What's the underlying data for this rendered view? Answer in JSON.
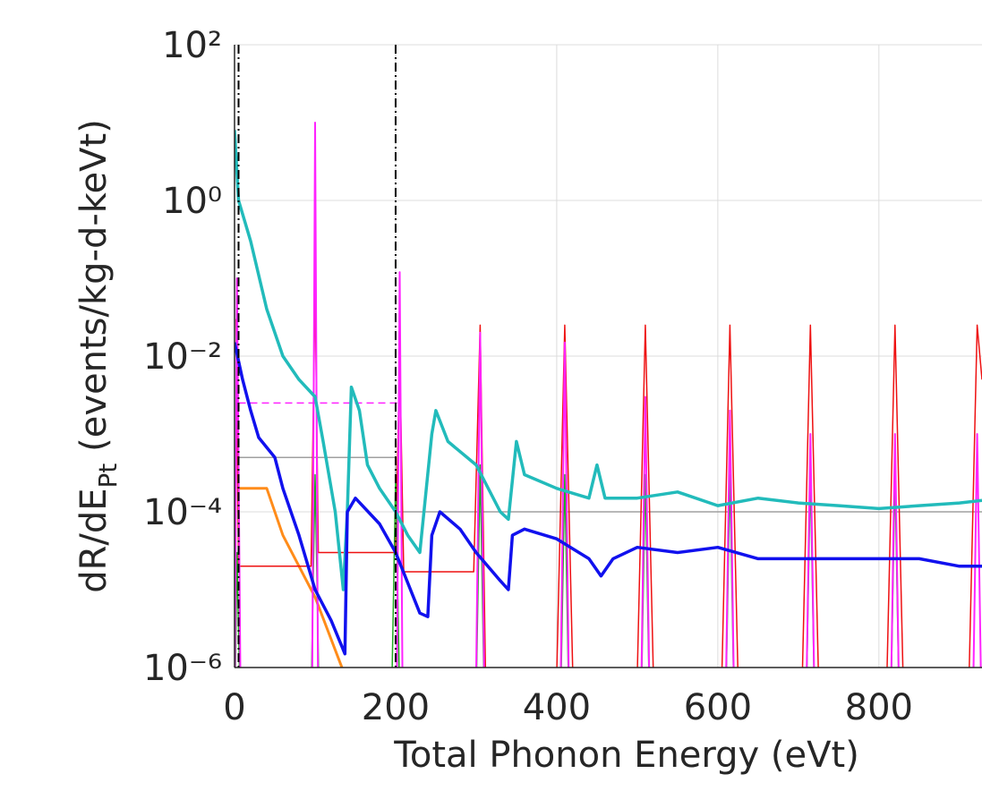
{
  "chart_data": {
    "type": "line",
    "xlabel": "Total Phonon Energy (eVt)",
    "ylabel": [
      "dR/dE",
      "Pt",
      "  (events/kg-d-keVt)"
    ],
    "xlim": [
      0,
      928
    ],
    "xticks": [
      0,
      200,
      400,
      600,
      800
    ],
    "ylim": [
      1e-06,
      100
    ],
    "yticks": [
      {
        "value": 100,
        "label": "10²"
      },
      {
        "value": 1,
        "label": "10⁰"
      },
      {
        "value": 0.01,
        "label": "10⁻²"
      },
      {
        "value": 0.0001,
        "label": "10⁻⁴"
      },
      {
        "value": 1e-06,
        "label": "10⁻⁶"
      }
    ],
    "yscale": "log",
    "grid": true,
    "vlines": [
      5,
      200
    ],
    "series": [
      {
        "color": "#a0a0a0",
        "width": 1.5,
        "dash": "none",
        "x": [
          5,
          200,
          200,
          928
        ],
        "values": [
          0.0005,
          0.0005,
          0.0001,
          0.0001
        ]
      },
      {
        "color": "#ff8c1a",
        "width": 3,
        "dash": "none",
        "x": [
          5,
          40,
          60,
          100,
          135
        ],
        "values": [
          0.0002,
          0.0002,
          5e-05,
          8e-06,
          9e-07
        ]
      },
      {
        "color": "#ee1111",
        "width": 1.5,
        "dash": "none",
        "x": [
          2,
          5,
          10,
          95,
          100,
          104,
          110,
          200,
          205,
          210,
          297,
          305,
          313,
          398,
          410,
          422,
          498,
          510,
          522,
          603,
          615,
          627,
          703,
          715,
          727,
          808,
          820,
          832,
          910,
          922,
          928
        ],
        "values": [
          0.03,
          2e-05,
          2e-05,
          2e-05,
          0.08,
          3e-05,
          3e-05,
          3e-05,
          0.01,
          1.7e-05,
          1.7e-05,
          0.025,
          1e-07,
          1e-07,
          0.025,
          1e-07,
          1e-07,
          0.025,
          1e-07,
          1e-07,
          0.025,
          1e-07,
          1e-07,
          0.025,
          1e-07,
          1e-07,
          0.025,
          1e-07,
          1e-07,
          0.025,
          0.005
        ]
      },
      {
        "color": "#22aa22",
        "width": 1.5,
        "dash": "none",
        "x": [
          0,
          3,
          8,
          94,
          100,
          106,
          194,
          200,
          206,
          299,
          305,
          311,
          404,
          410,
          416,
          504,
          510,
          516,
          609,
          615,
          621,
          709,
          715,
          721,
          814,
          820,
          826
        ],
        "values": [
          1e-07,
          3e-05,
          1e-07,
          1e-07,
          0.0003,
          1e-07,
          1e-07,
          0.0003,
          1e-07,
          1e-07,
          0.0004,
          1e-07,
          1e-07,
          0.0003,
          1e-07,
          1e-07,
          0.0003,
          1e-07,
          1e-07,
          0.0003,
          1e-07,
          1e-07,
          0.0003,
          1e-07,
          1e-07,
          0.0003,
          1e-07
        ]
      },
      {
        "color": "#ff22ff",
        "width": 1.5,
        "dash": "8 5",
        "x": [
          5,
          205
        ],
        "values": [
          0.0025,
          0.0025
        ]
      },
      {
        "color": "#ff22ff",
        "width": 2,
        "dash": "none",
        "x": [
          0,
          3,
          8,
          96,
          100,
          104,
          201,
          205,
          209,
          299,
          305,
          311,
          404,
          410,
          416,
          504,
          510,
          516,
          609,
          615,
          621,
          709,
          715,
          721,
          814,
          820,
          826,
          916,
          922,
          928
        ],
        "values": [
          1e-07,
          0.1,
          1e-07,
          1e-07,
          10,
          1e-07,
          1e-07,
          0.12,
          1e-07,
          1e-07,
          0.02,
          1e-07,
          1e-07,
          0.015,
          1e-07,
          1e-07,
          0.003,
          1e-07,
          1e-07,
          0.002,
          1e-07,
          1e-07,
          0.001,
          1e-07,
          1e-07,
          0.001,
          1e-07,
          1e-07,
          0.001,
          1e-07
        ]
      },
      {
        "color": "#22bbbb",
        "width": 3.5,
        "dash": "none",
        "x": [
          0,
          5,
          20,
          40,
          60,
          80,
          100,
          110,
          125,
          135,
          140,
          145,
          155,
          165,
          180,
          200,
          215,
          230,
          245,
          250,
          265,
          300,
          330,
          340,
          350,
          360,
          400,
          440,
          450,
          460,
          500,
          550,
          600,
          650,
          700,
          750,
          800,
          850,
          900,
          928
        ],
        "values": [
          8,
          1,
          0.3,
          0.04,
          0.01,
          0.005,
          0.003,
          0.0008,
          0.0001,
          1e-05,
          0.0001,
          0.004,
          0.002,
          0.0004,
          0.0002,
          0.0001,
          5e-05,
          3e-05,
          0.001,
          0.002,
          0.0008,
          0.0004,
          0.0001,
          8e-05,
          0.0008,
          0.0003,
          0.0002,
          0.00015,
          0.0004,
          0.00015,
          0.00015,
          0.00018,
          0.00012,
          0.00015,
          0.00013,
          0.00012,
          0.00011,
          0.00012,
          0.00013,
          0.00014
        ]
      },
      {
        "color": "#1111ee",
        "width": 3.5,
        "dash": "none",
        "x": [
          0,
          10,
          20,
          30,
          50,
          60,
          80,
          100,
          120,
          137,
          140,
          150,
          180,
          200,
          230,
          240,
          245,
          255,
          280,
          300,
          330,
          340,
          345,
          360,
          400,
          440,
          455,
          470,
          500,
          550,
          600,
          650,
          700,
          750,
          800,
          850,
          900,
          928
        ],
        "values": [
          0.015,
          0.005,
          0.002,
          0.0009,
          0.0005,
          0.0002,
          5e-05,
          1e-05,
          4e-06,
          1.5e-06,
          0.0001,
          0.00015,
          7e-05,
          3e-05,
          5e-06,
          4.5e-06,
          5e-05,
          0.0001,
          6e-05,
          3e-05,
          1.3e-05,
          1e-05,
          5e-05,
          6e-05,
          4.5e-05,
          2.5e-05,
          1.5e-05,
          2.5e-05,
          3.5e-05,
          3e-05,
          3.5e-05,
          2.5e-05,
          2.5e-05,
          2.5e-05,
          2.5e-05,
          2.5e-05,
          2e-05,
          2e-05
        ]
      }
    ]
  }
}
